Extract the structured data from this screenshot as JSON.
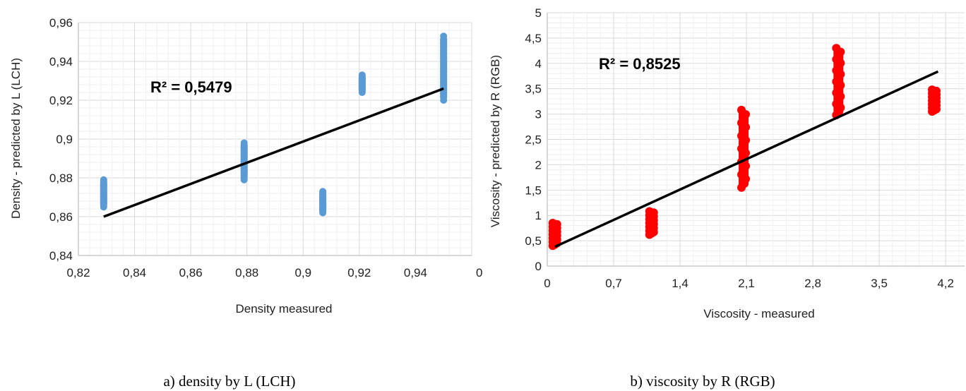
{
  "chart_data": [
    {
      "type": "scatter",
      "caption": "a) density by L (LCH)",
      "xlabel": "Density measured",
      "ylabel": "Density - predicted by L (LCH)",
      "annotation": "R² = 0,5479",
      "xlim": [
        0.82,
        0.96
      ],
      "ylim": [
        0.84,
        0.96
      ],
      "xticks": [
        "0,82",
        "0,84",
        "0,86",
        "0,88",
        "0,9",
        "0,92",
        "0,94",
        "0"
      ],
      "yticks": [
        "0,84",
        "0,86",
        "0,88",
        "0,9",
        "0,92",
        "0,94",
        "0,96"
      ],
      "grid": true,
      "marker_color": "#5b9bd5",
      "trendline": {
        "x": [
          0.829,
          0.95
        ],
        "y": [
          0.86,
          0.926
        ],
        "color": "#000000"
      },
      "series": [
        {
          "clusters": [
            {
              "x": 0.829,
              "y_min": 0.865,
              "y_max": 0.879
            },
            {
              "x": 0.879,
              "y_min": 0.879,
              "y_max": 0.898
            },
            {
              "x": 0.907,
              "y_min": 0.862,
              "y_max": 0.873
            },
            {
              "x": 0.921,
              "y_min": 0.924,
              "y_max": 0.933
            },
            {
              "x": 0.95,
              "y_min": 0.92,
              "y_max": 0.953
            }
          ]
        }
      ]
    },
    {
      "type": "scatter",
      "caption": "b) viscosity by R (RGB)",
      "xlabel": "Viscosity - measured",
      "ylabel": "Viscosity - predicted by R (RGB)",
      "annotation": "R² = 0,8525",
      "xlim": [
        0,
        4.4
      ],
      "ylim": [
        0,
        5
      ],
      "xticks": [
        "0",
        "0,7",
        "1,4",
        "2,1",
        "2,8",
        "3,5",
        "4,2"
      ],
      "yticks": [
        "0",
        "0,5",
        "1",
        "1,5",
        "2",
        "2,5",
        "3",
        "3,5",
        "4",
        "4,5",
        "5"
      ],
      "grid": true,
      "marker_color": "#ff0000",
      "trendline": {
        "x": [
          0.08,
          4.12
        ],
        "y": [
          0.38,
          3.84
        ],
        "color": "#000000"
      },
      "series": [
        {
          "clusters": [
            {
              "x": 0.08,
              "y_min": 0.4,
              "y_max": 0.85
            },
            {
              "x": 1.1,
              "y_min": 0.62,
              "y_max": 1.08
            },
            {
              "x": 2.07,
              "y_min": 1.55,
              "y_max": 3.08
            },
            {
              "x": 3.07,
              "y_min": 2.98,
              "y_max": 4.3
            },
            {
              "x": 4.08,
              "y_min": 3.05,
              "y_max": 3.48
            }
          ]
        }
      ]
    }
  ]
}
